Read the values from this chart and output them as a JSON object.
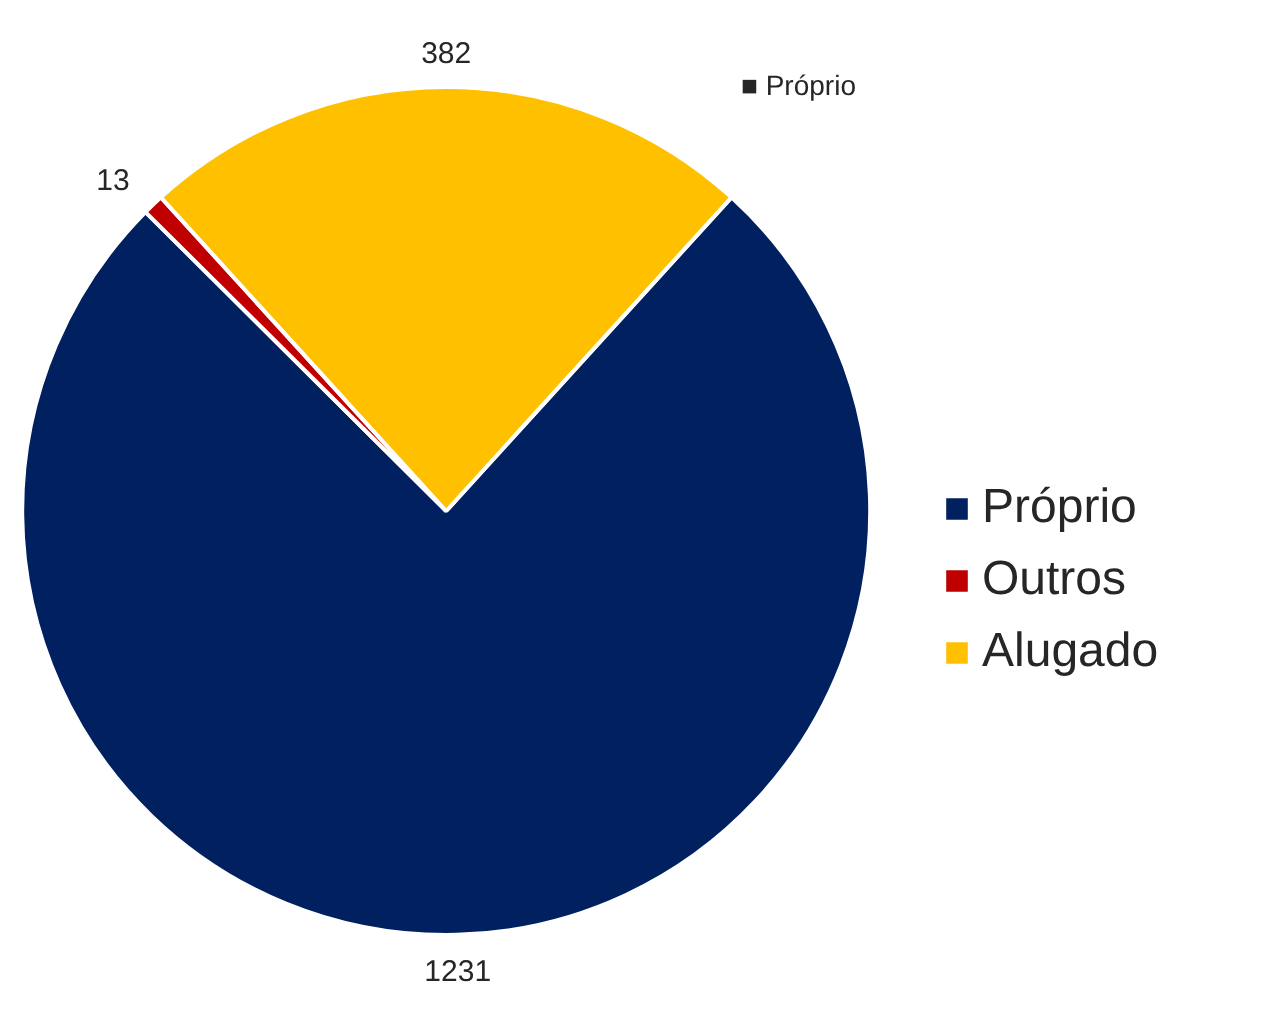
{
  "chart_data": {
    "type": "pie",
    "categories": [
      "Próprio",
      "Outros",
      "Alugado"
    ],
    "values": [
      1231,
      13,
      382
    ],
    "colors": [
      "#002060",
      "#c00000",
      "#ffc000"
    ],
    "data_labels": true,
    "legend": "right",
    "annotations": [
      "■ Próprio"
    ]
  }
}
